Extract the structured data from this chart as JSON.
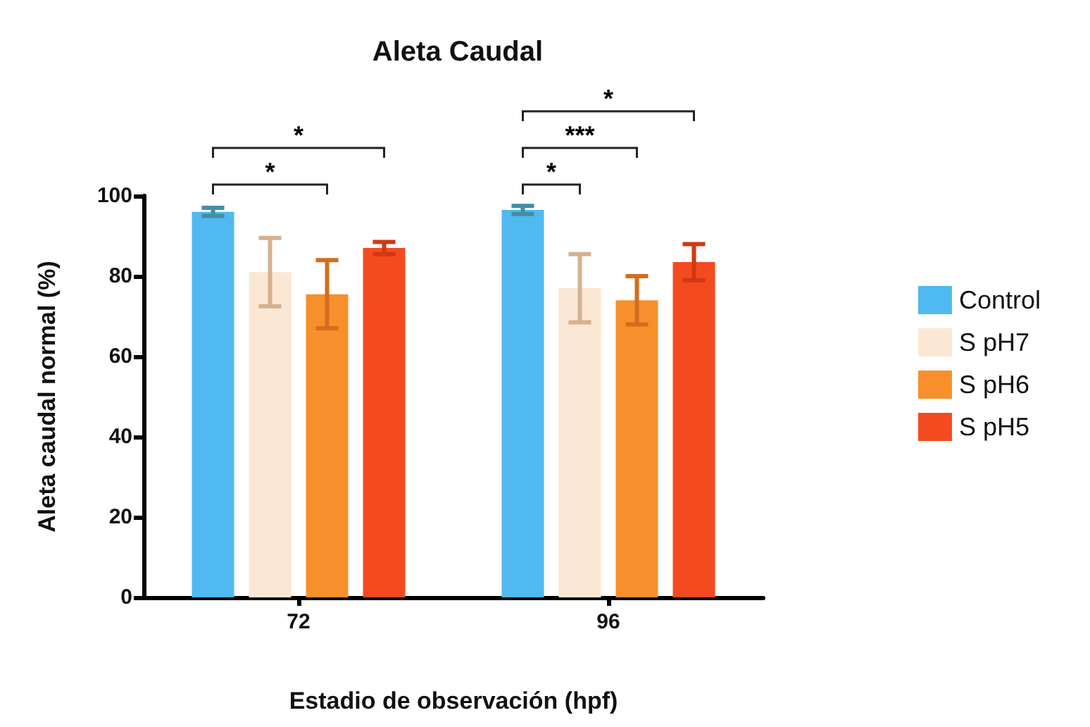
{
  "chart_data": {
    "type": "bar",
    "title": "Aleta Caudal",
    "xlabel": "Estadio de observación (hpf)",
    "ylabel": "Aleta caudal normal (%)",
    "categories": [
      "72",
      "96"
    ],
    "series": [
      {
        "name": "Control",
        "color": "#4fb9f0",
        "values": [
          96,
          96.5
        ],
        "errors": [
          1,
          1
        ]
      },
      {
        "name": "S pH7",
        "color": "#fbe8d4",
        "values": [
          81,
          77
        ],
        "errors": [
          8.5,
          8.5
        ]
      },
      {
        "name": "S pH6",
        "color": "#f7902c",
        "values": [
          75.5,
          74
        ],
        "errors": [
          8.5,
          6
        ]
      },
      {
        "name": "S pH5",
        "color": "#f44a1f",
        "values": [
          87,
          83.5
        ],
        "errors": [
          1.5,
          4.5
        ]
      }
    ],
    "ylim": [
      0,
      100
    ],
    "yticks": [
      0,
      20,
      40,
      60,
      80,
      100
    ],
    "grid": false,
    "legend": "right",
    "annotations": [
      "*",
      "*",
      "*",
      "***",
      "*"
    ]
  }
}
